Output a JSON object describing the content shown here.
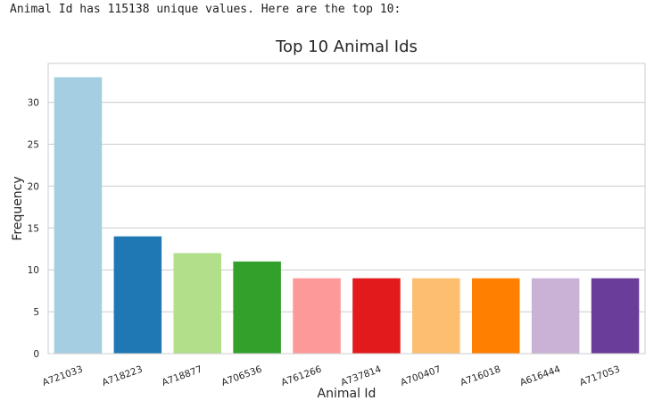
{
  "output_text": "Animal Id has 115138 unique values. Here are the top 10:",
  "chart_data": {
    "type": "bar",
    "title": "Top 10 Animal Ids",
    "xlabel": "Animal Id",
    "ylabel": "Frequency",
    "categories": [
      "A721033",
      "A718223",
      "A718877",
      "A706536",
      "A761266",
      "A737814",
      "A700407",
      "A716018",
      "A616444",
      "A717053"
    ],
    "values": [
      33,
      14,
      12,
      11,
      9,
      9,
      9,
      9,
      9,
      9
    ],
    "colors": [
      "#a6cee3",
      "#1f78b4",
      "#b2df8a",
      "#33a02c",
      "#fb9a99",
      "#e31a1c",
      "#fdbf6f",
      "#ff7f00",
      "#cab2d6",
      "#6a3d9a"
    ],
    "ylim": [
      0,
      34.65
    ],
    "yticks": [
      0,
      5,
      10,
      15,
      20,
      25,
      30
    ],
    "grid": true,
    "legend": "none"
  }
}
